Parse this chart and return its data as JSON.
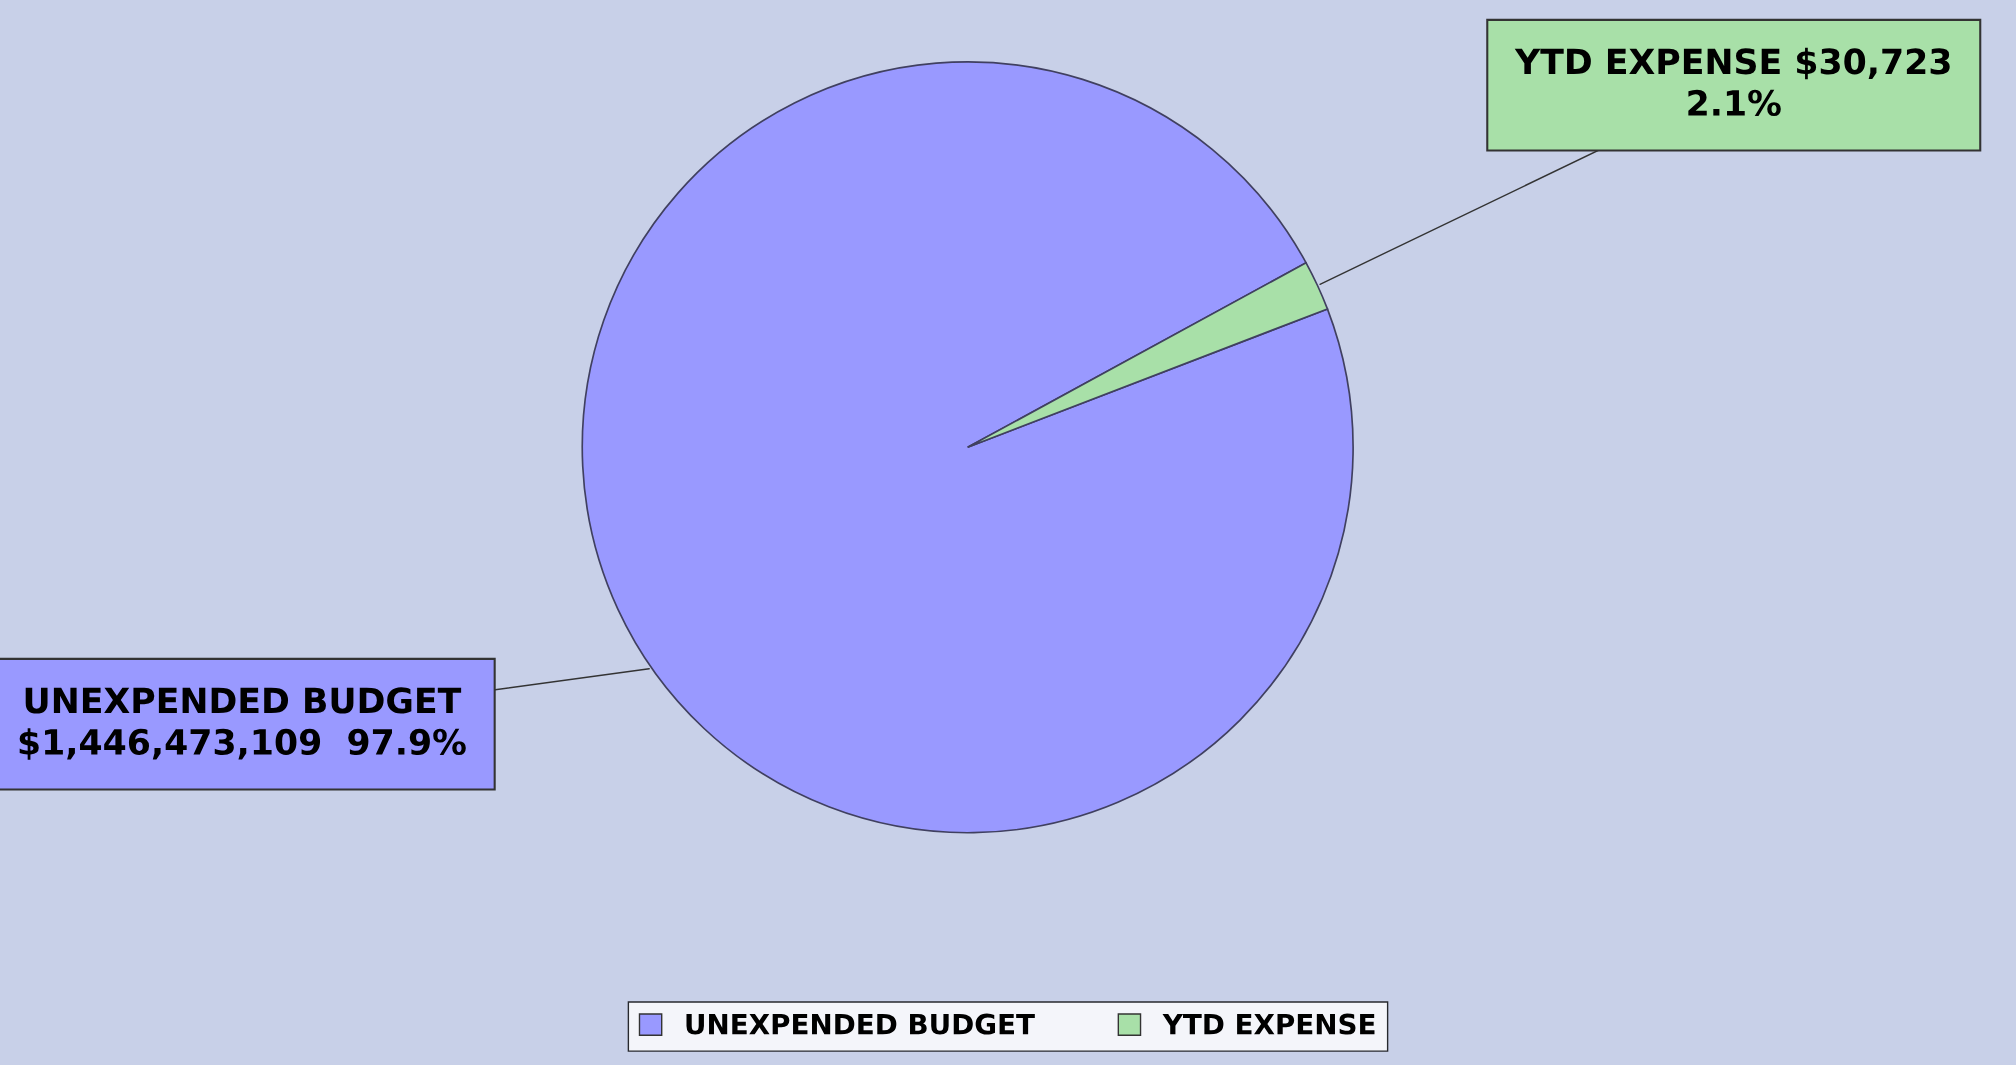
{
  "chart_data": {
    "type": "pie",
    "categories": [
      "UNEXPENDED BUDGET",
      "YTD EXPENSE"
    ],
    "values": [
      97.9,
      2.1
    ],
    "colors": [
      "#9999ff",
      "#a8e0a8"
    ],
    "value_labels": [
      "UNEXPENDED BUDGET\n$1,446,473,109  97.9%",
      "YTD EXPENSE $30,723\n2.1%"
    ],
    "legend": "bottom"
  }
}
